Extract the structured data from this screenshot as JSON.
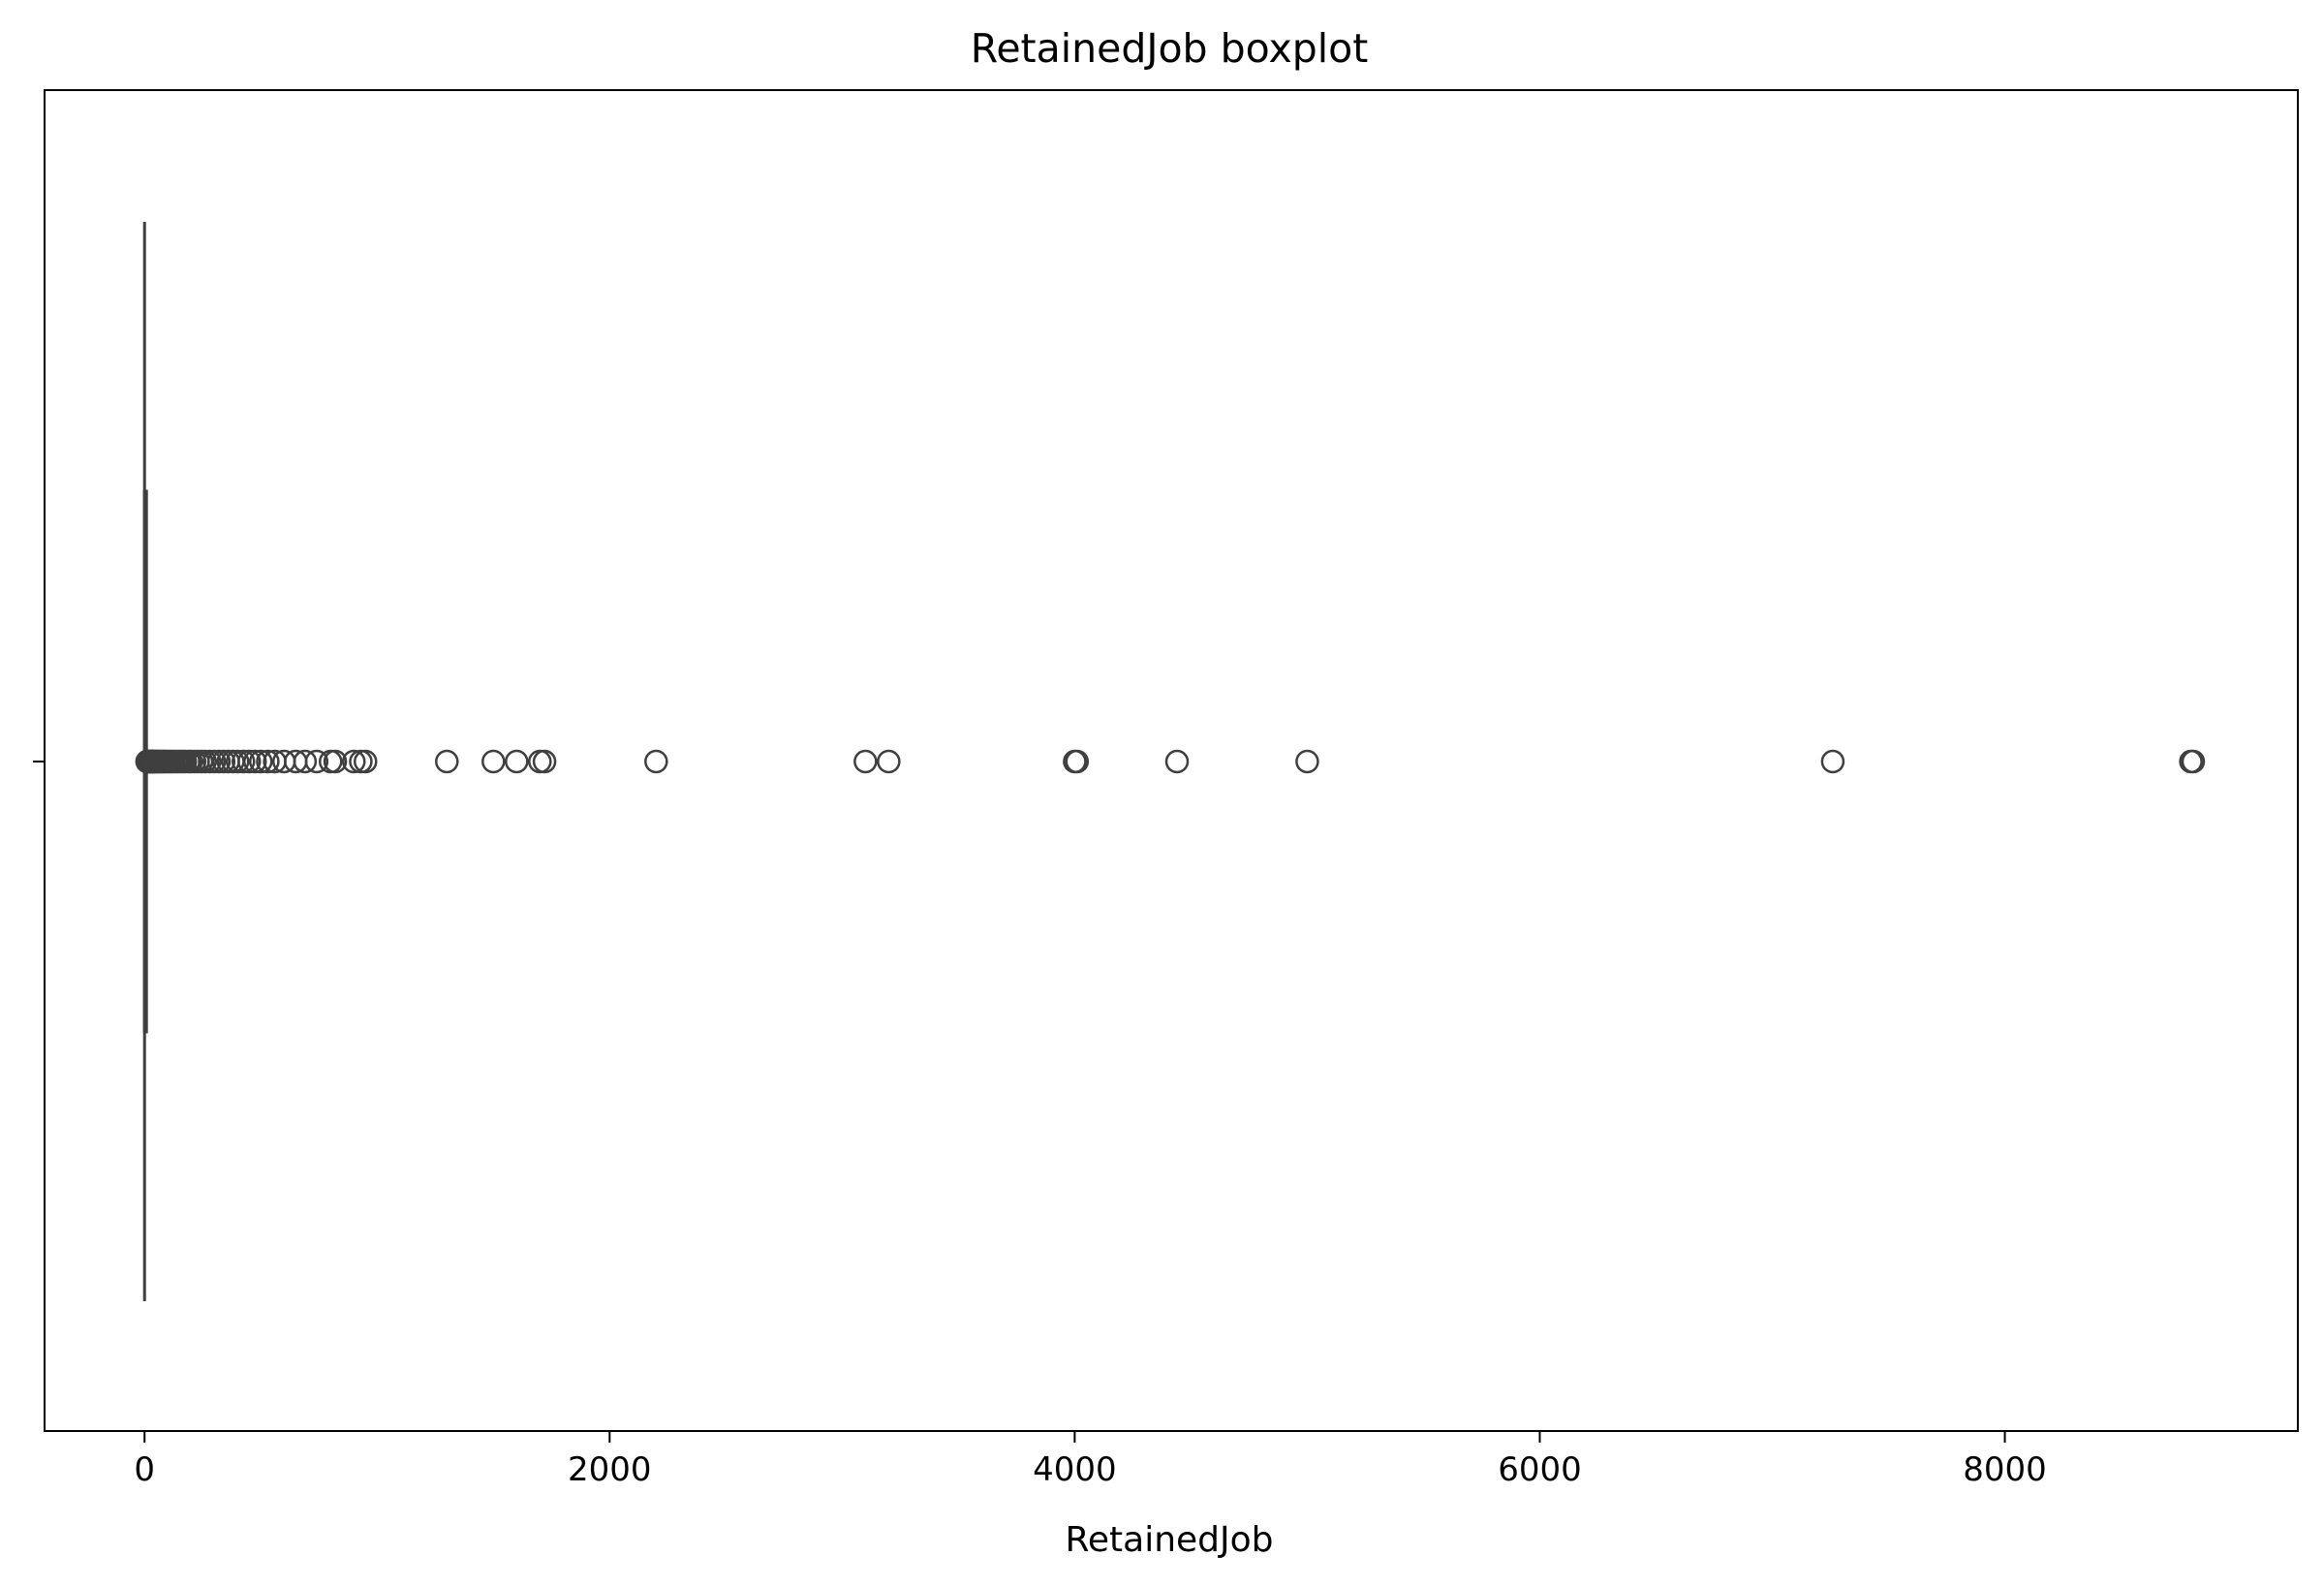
{
  "chart_data": {
    "type": "boxplot",
    "orientation": "horizontal",
    "title": "RetainedJob boxplot",
    "xlabel": "RetainedJob",
    "ylabel": "",
    "xlim": [
      -430,
      9260
    ],
    "x_ticks": [
      0,
      2000,
      4000,
      6000,
      8000
    ],
    "x_tick_labels": [
      "0",
      "2000",
      "4000",
      "6000",
      "8000"
    ],
    "grid": false,
    "legend": "none",
    "box": {
      "whisker_low": 0,
      "q1": 0,
      "median": 0,
      "q3": 4,
      "whisker_high": 10
    },
    "outliers": [
      11,
      13,
      15,
      18,
      20,
      23,
      25,
      28,
      30,
      33,
      35,
      38,
      40,
      44,
      48,
      52,
      56,
      60,
      65,
      70,
      75,
      80,
      86,
      92,
      100,
      108,
      115,
      125,
      135,
      145,
      155,
      165,
      175,
      190,
      200,
      215,
      230,
      245,
      260,
      280,
      300,
      320,
      340,
      360,
      380,
      400,
      425,
      450,
      475,
      500,
      530,
      560,
      600,
      650,
      690,
      740,
      800,
      820,
      900,
      930,
      950,
      1300,
      1500,
      1600,
      1700,
      1720,
      2200,
      3100,
      3200,
      4000,
      4010,
      4440,
      5000,
      7260,
      8800,
      8810
    ],
    "colors": {
      "box_edge": "#3f3f3f",
      "outlier_edge": "#3f3f3f",
      "axes": "#000000"
    }
  }
}
